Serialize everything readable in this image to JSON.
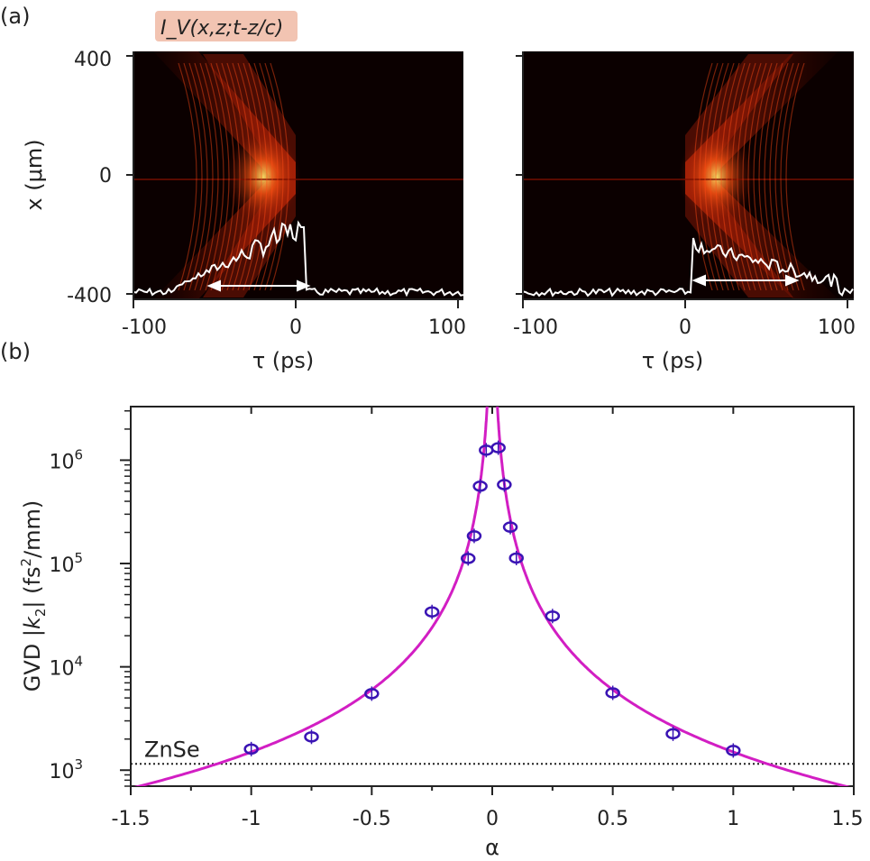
{
  "panel_a_label": "(a)",
  "panel_b_label": "(b)",
  "chart_data": [
    {
      "type": "heatmap",
      "panel": "a-left",
      "annotation": "I_V(x,z;t-z/c)",
      "xlabel": "τ (ps)",
      "ylabel": "x (μm)",
      "xlim": [
        -115,
        115
      ],
      "ylim": [
        -430,
        430
      ],
      "xticks": [
        "-100",
        "0",
        "100"
      ],
      "yticks": [
        "400",
        "0",
        "-400"
      ],
      "colors": {
        "background": "#0b0000",
        "intensity": "#ff3a12",
        "peak": "#ffe066",
        "overlay": "#ffffff"
      },
      "arrow_x": [
        -60,
        8
      ]
    },
    {
      "type": "heatmap",
      "panel": "a-right",
      "xlabel": "τ (ps)",
      "xlim": [
        -115,
        115
      ],
      "ylim": [
        -430,
        430
      ],
      "xticks": [
        "-100",
        "0",
        "100"
      ],
      "arrow_x": [
        10,
        72
      ]
    },
    {
      "type": "scatter",
      "panel": "b",
      "xlabel": "α",
      "ylabel": "GVD |k2| (fs2/mm)",
      "xlim": [
        -1.5,
        1.5
      ],
      "ylim": [
        700,
        3300000
      ],
      "yscale": "log",
      "xticks": [
        "-1.5",
        "-1",
        "-0.5",
        "0",
        "0.5",
        "1",
        "1.5"
      ],
      "yticks": [
        {
          "base": "10",
          "exp": "3"
        },
        {
          "base": "10",
          "exp": "4"
        },
        {
          "base": "10",
          "exp": "5"
        },
        {
          "base": "10",
          "exp": "6"
        }
      ],
      "reference_line": {
        "label": "ZnSe",
        "value": 1150
      },
      "points": [
        {
          "x": -1.0,
          "y": 1600
        },
        {
          "x": -0.75,
          "y": 2100
        },
        {
          "x": -0.5,
          "y": 5500
        },
        {
          "x": -0.25,
          "y": 34000
        },
        {
          "x": -0.1,
          "y": 112000
        },
        {
          "x": -0.075,
          "y": 185000
        },
        {
          "x": -0.05,
          "y": 560000
        },
        {
          "x": -0.025,
          "y": 1250000
        },
        {
          "x": 0.025,
          "y": 1320000
        },
        {
          "x": 0.05,
          "y": 580000
        },
        {
          "x": 0.075,
          "y": 225000
        },
        {
          "x": 0.1,
          "y": 113000
        },
        {
          "x": 0.25,
          "y": 31000
        },
        {
          "x": 0.5,
          "y": 5600
        },
        {
          "x": 0.75,
          "y": 2250
        },
        {
          "x": 1.0,
          "y": 1550
        }
      ],
      "fit_curve": {
        "form": "y = A / alpha^2",
        "A": 1500
      },
      "colors": {
        "points": "#3a14b4",
        "curve": "#d21ec3"
      },
      "grid": false
    }
  ]
}
